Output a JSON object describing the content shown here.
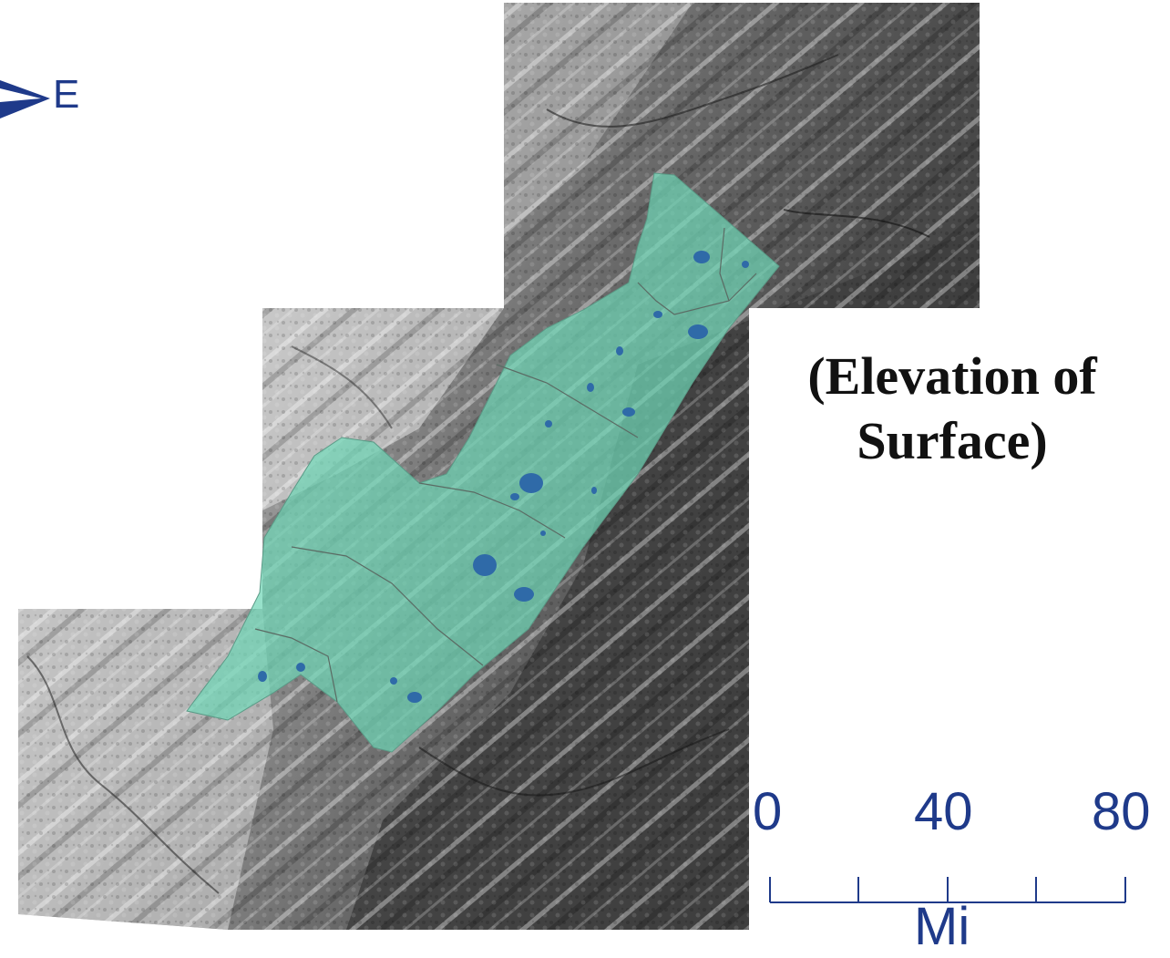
{
  "north_arrow": {
    "label": "E",
    "icon": "north-arrow-icon",
    "color": "#1f3a8a"
  },
  "title": {
    "line1": "(Elevation of",
    "line2": "Surface)"
  },
  "scale_bar": {
    "ticks": [
      "0",
      "40",
      "80"
    ],
    "unit": "Mi",
    "color": "#1f3a8a"
  },
  "colors": {
    "study_area_fill": "#6fd6b5",
    "waterbody_fill": "#2f6aa8",
    "dark_elevation": "#3c3c3c",
    "light_elevation": "#d8d8d8"
  }
}
